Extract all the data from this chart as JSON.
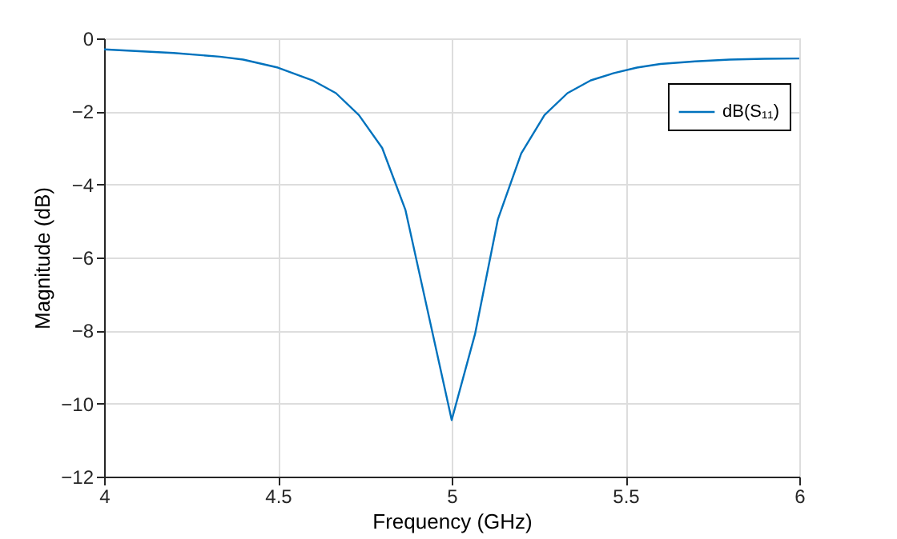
{
  "chart_data": {
    "type": "line",
    "xlabel": "Frequency (GHz)",
    "ylabel": "Magnitude (dB)",
    "x": [
      4,
      4.1,
      4.2,
      4.333,
      4.4,
      4.5,
      4.6,
      4.667,
      4.733,
      4.8,
      4.867,
      5.0,
      5.067,
      5.133,
      5.2,
      5.267,
      5.333,
      5.4,
      5.467,
      5.533,
      5.6,
      5.7,
      5.8,
      5.9,
      6
    ],
    "series": [
      {
        "name": "dB(S₁₁)",
        "color": "#0072bd",
        "values": [
          -0.3,
          -0.35,
          -0.4,
          -0.5,
          -0.58,
          -0.8,
          -1.15,
          -1.5,
          -2.1,
          -3.0,
          -4.7,
          -10.45,
          -8.1,
          -4.95,
          -3.15,
          -2.1,
          -1.5,
          -1.15,
          -0.95,
          -0.8,
          -0.7,
          -0.63,
          -0.58,
          -0.56,
          -0.55
        ]
      }
    ],
    "xlim": [
      4,
      6
    ],
    "xticks": [
      4,
      4.5,
      5,
      5.5,
      6
    ],
    "ylim": [
      -12,
      0
    ],
    "yticks": [
      -12,
      -10,
      -8,
      -6,
      -4,
      -2,
      0
    ],
    "grid": true,
    "legend": "top right",
    "marker": "none",
    "line_style": "solid"
  }
}
